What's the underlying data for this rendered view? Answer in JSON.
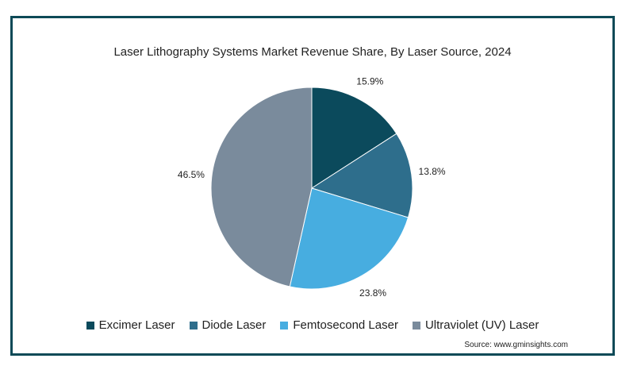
{
  "chart_data": {
    "type": "pie",
    "title": "Laser Lithography Systems Market Revenue Share, By Laser Source, 2024",
    "categories": [
      "Excimer Laser",
      "Diode Laser",
      "Femtosecond Laser",
      "Ultraviolet (UV) Laser"
    ],
    "values": [
      15.9,
      13.8,
      23.8,
      46.5
    ],
    "labels": [
      "15.9%",
      "13.8%",
      "23.8%",
      "46.5%"
    ],
    "colors": [
      "#0b4a5c",
      "#2e6e8c",
      "#47ade0",
      "#7a8b9c"
    ],
    "legend_position": "bottom",
    "source": "Source: www.gminsights.com"
  }
}
